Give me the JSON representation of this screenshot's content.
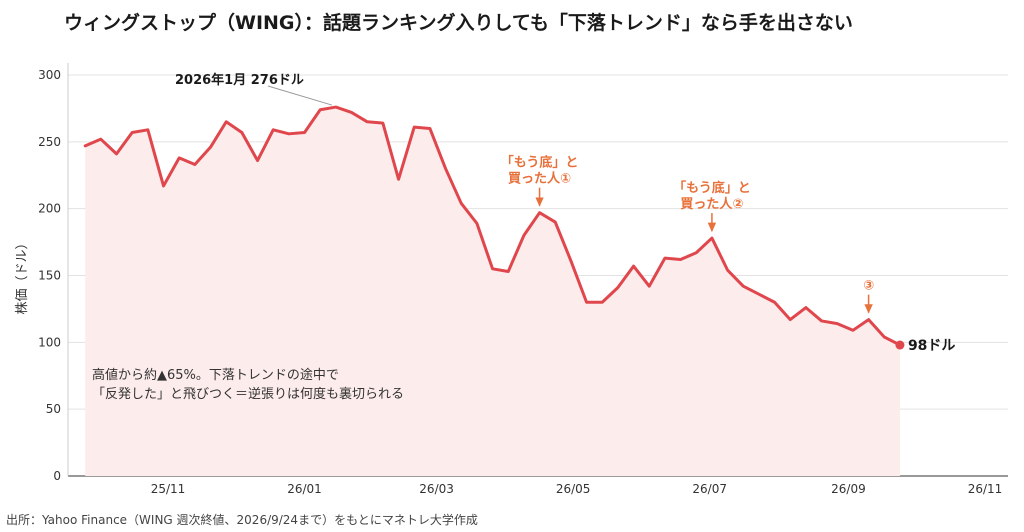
{
  "title": "ウィングストップ（WING）：話題ランキング入りしても「下落トレンド」なら手を出さない",
  "source": "出所：Yahoo Finance（WING 週次終値、2026/9/24まで）をもとにマネトレ大学作成",
  "chart_data": {
    "type": "area",
    "ylabel": "株価（ドル）",
    "xlabel": "",
    "ylim": [
      0,
      300
    ],
    "y_ticks": [
      0,
      50,
      100,
      150,
      200,
      250,
      300
    ],
    "x_ticks": [
      "25/11",
      "26/01",
      "26/03",
      "26/05",
      "26/07",
      "26/09",
      "26/11"
    ],
    "grid": "horizontal",
    "colors": {
      "line": "#e0474c",
      "fill": "#fdecec",
      "annotation": "#e8703a",
      "peak_leader": "#999999"
    },
    "series": [
      {
        "x": [
          "2025-09-25",
          "2025-10-02",
          "2025-10-09",
          "2025-10-16",
          "2025-10-23",
          "2025-10-30",
          "2025-11-06",
          "2025-11-13",
          "2025-11-20",
          "2025-11-27",
          "2025-12-04",
          "2025-12-11",
          "2025-12-18",
          "2025-12-25",
          "2026-01-01",
          "2026-01-08",
          "2026-01-15",
          "2026-01-22",
          "2026-01-29",
          "2026-02-05",
          "2026-02-12",
          "2026-02-19",
          "2026-02-26",
          "2026-03-05",
          "2026-03-12",
          "2026-03-19",
          "2026-03-26",
          "2026-04-02",
          "2026-04-09",
          "2026-04-16",
          "2026-04-23",
          "2026-04-30",
          "2026-05-07",
          "2026-05-14",
          "2026-05-21",
          "2026-05-28",
          "2026-06-04",
          "2026-06-11",
          "2026-06-18",
          "2026-06-25",
          "2026-07-02",
          "2026-07-09",
          "2026-07-16",
          "2026-07-23",
          "2026-07-30",
          "2026-08-06",
          "2026-08-13",
          "2026-08-20",
          "2026-08-27",
          "2026-09-03",
          "2026-09-10",
          "2026-09-17",
          "2026-09-24"
        ],
        "values": [
          247,
          252,
          241,
          257,
          259,
          217,
          238,
          233,
          246,
          265,
          257,
          236,
          259,
          256,
          257,
          274,
          276,
          272,
          265,
          264,
          222,
          261,
          260,
          230,
          204,
          189,
          155,
          153,
          180,
          197,
          190,
          161,
          130,
          130,
          141,
          157,
          142,
          163,
          162,
          167,
          178,
          154,
          142,
          136,
          130,
          117,
          126,
          116,
          114,
          109,
          117,
          104,
          98
        ]
      }
    ],
    "annotations": [
      {
        "text": "2026年1月 276ドル",
        "x": "2026-01-15",
        "y": 276
      },
      {
        "lines": [
          "「もう底」と",
          "買った人①"
        ],
        "x": "2026-04-16",
        "y": 197
      },
      {
        "lines": [
          "「もう底」と",
          "買った人②"
        ],
        "x": "2026-07-02",
        "y": 178
      },
      {
        "lines": [
          "③"
        ],
        "x": "2026-09-10",
        "y": 117
      }
    ],
    "end_label": {
      "text": "98ドル",
      "x": "2026-09-24",
      "y": 98
    },
    "note": [
      "高値から約▲65%。下落トレンドの途中で",
      "「反発した」と飛びつく＝逆張りは何度も裏切られる"
    ]
  }
}
